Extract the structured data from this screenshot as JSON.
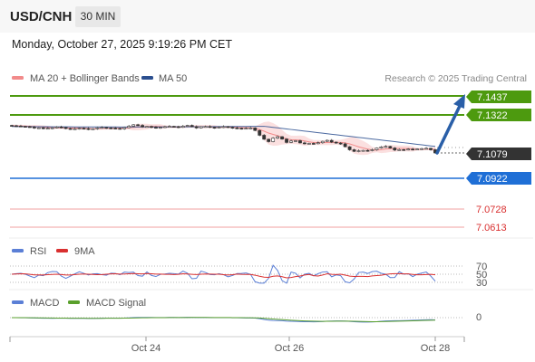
{
  "header": {
    "symbol": "USD/CNH",
    "timeframe": "30 MIN"
  },
  "timestamp": "Monday, October 27, 2025 9:19:26 PM CET",
  "legend": {
    "ma20_label": "MA 20 + Bollinger Bands",
    "ma50_label": "MA 50",
    "credit": "Research © 2025 Trading Central",
    "colors": {
      "ma20": "#f28b8b",
      "ma50": "#2b4f8f"
    }
  },
  "levels": [
    {
      "value": "7.1437",
      "style": "boxed",
      "color": "#4d9a0f"
    },
    {
      "value": "7.1322",
      "style": "boxed",
      "color": "#4d9a0f"
    },
    {
      "value": "7.1079",
      "style": "current",
      "color": "#333333"
    },
    {
      "value": "7.0922",
      "style": "boxed",
      "color": "#1f6fd6"
    },
    {
      "value": "7.0728",
      "style": "text",
      "color": "#d93030"
    },
    {
      "value": "7.0613",
      "style": "text",
      "color": "#d93030"
    }
  ],
  "rsi": {
    "labels": [
      "RSI",
      "9MA"
    ],
    "colors": {
      "rsi": "#5b7fd6",
      "ma": "#d93030"
    },
    "ticks": [
      "70",
      "50",
      "30"
    ]
  },
  "macd": {
    "labels": [
      "MACD",
      "MACD Signal"
    ],
    "colors": {
      "macd": "#5b7fd6",
      "signal": "#5aa02c"
    },
    "ticks": [
      "0"
    ]
  },
  "x_axis": {
    "labels": [
      "Oct 24",
      "Oct 26",
      "Oct 28"
    ]
  },
  "chart_data": {
    "type": "candlestick",
    "y_min": 7.085,
    "y_max": 7.15,
    "close_series": [
      7.125,
      7.1248,
      7.1246,
      7.1244,
      7.1241,
      7.1236,
      7.1237,
      7.1233,
      7.1234,
      7.1237,
      7.1242,
      7.1239,
      7.1232,
      7.123,
      7.1231,
      7.1234,
      7.1232,
      7.1228,
      7.1231,
      7.1237,
      7.1239,
      7.1236,
      7.1235,
      7.1233,
      7.123,
      7.1238,
      7.1247,
      7.1256,
      7.1252,
      7.1243,
      7.1245,
      7.124,
      7.1236,
      7.124,
      7.1244,
      7.1246,
      7.1244,
      7.124,
      7.1247,
      7.1252,
      7.1244,
      7.1236,
      7.1244,
      7.1245,
      7.124,
      7.1237,
      7.1241,
      7.1244,
      7.124,
      7.1236,
      7.1234,
      7.1232,
      7.1234,
      7.1236,
      7.122,
      7.119,
      7.1165,
      7.115,
      7.1172,
      7.1181,
      7.1166,
      7.1145,
      7.1154,
      7.1156,
      7.1142,
      7.1138,
      7.1139,
      7.1137,
      7.1143,
      7.1152,
      7.1158,
      7.1147,
      7.1141,
      7.1136,
      7.1118,
      7.1099,
      7.1089,
      7.1093,
      7.1095,
      7.1093,
      7.1099,
      7.111,
      7.1117,
      7.112,
      7.111,
      7.1097,
      7.11,
      7.1099,
      7.1103,
      7.1101,
      7.1104,
      7.1106,
      7.1108,
      7.1099,
      7.1079
    ],
    "ma50": {
      "start": 7.1245,
      "end": 7.112
    },
    "ma20_center_end": 7.1085,
    "projection": {
      "from": 7.1079,
      "to": 7.1437
    }
  }
}
